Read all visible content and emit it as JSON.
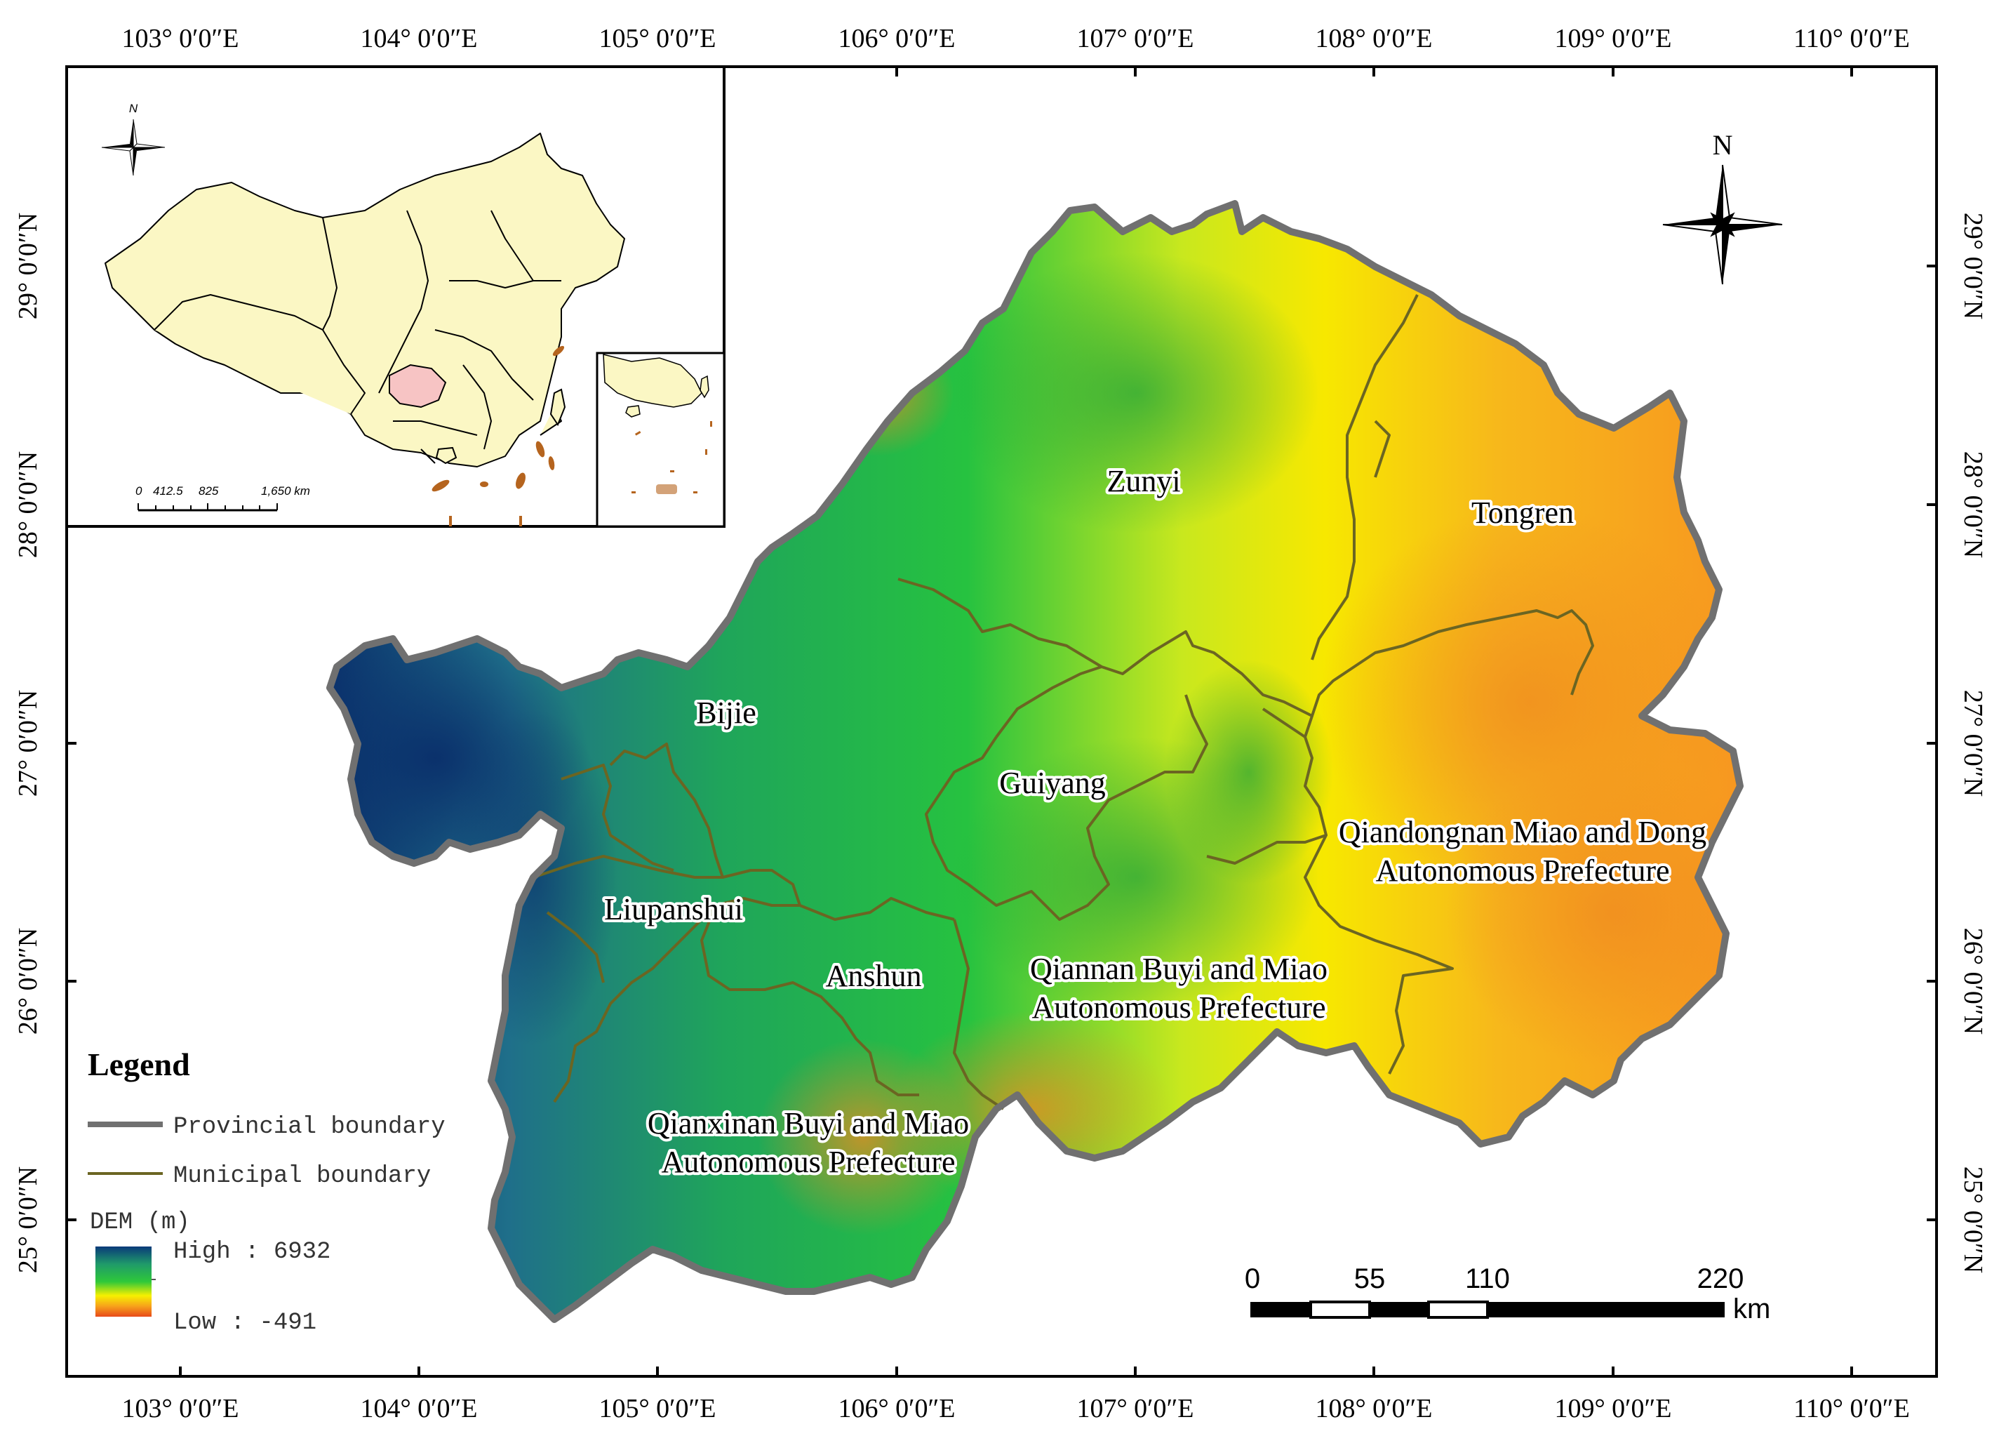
{
  "map": {
    "top_ticks": [
      "103° 0′0″E",
      "104° 0′0″E",
      "105° 0′0″E",
      "106° 0′0″E",
      "107° 0′0″E",
      "108° 0′0″E",
      "109° 0′0″E",
      "110° 0′0″E"
    ],
    "bottom_ticks": [
      "103° 0′0″E",
      "104° 0′0″E",
      "105° 0′0″E",
      "106° 0′0″E",
      "107° 0′0″E",
      "108° 0′0″E",
      "109° 0′0″E",
      "110° 0′0″E"
    ],
    "left_ticks": [
      "29° 0′0″N",
      "28° 0′0″N",
      "27° 0′0″N",
      "26° 0′0″N",
      "25° 0′0″N"
    ],
    "right_ticks": [
      "29° 0′0″N",
      "28° 0′0″N",
      "27° 0′0″N",
      "26° 0′0″N",
      "25° 0′0″N"
    ],
    "regions": [
      {
        "name": "Zunyi"
      },
      {
        "name": "Tongren"
      },
      {
        "name": "Bijie"
      },
      {
        "name": "Guiyang"
      },
      {
        "name": "Liupanshui"
      },
      {
        "name": "Anshun"
      },
      {
        "name": "Qiandongnan Miao and Dong",
        "name2": "Autonomous Prefecture"
      },
      {
        "name": "Qiannan Buyi and Miao",
        "name2": "Autonomous Prefecture"
      },
      {
        "name": "Qianxinan Buyi and Miao",
        "name2": "Autonomous Prefecture"
      }
    ],
    "north_label": "N",
    "scale": {
      "labels": [
        "0",
        "55",
        "110",
        "220"
      ],
      "unit": "km"
    },
    "colors": {
      "high": "#0a2f6b",
      "mid_high": "#1f7a8c",
      "green": "#1fb84a",
      "yellow": "#f7f000",
      "orange": "#f7a21b",
      "low": "#e8531a",
      "provincial": "#707070",
      "municipal": "#6b6522",
      "inset_fill": "#fbf7c4",
      "inset_highlight": "#f7c4c4"
    }
  },
  "inset": {
    "north_label": "N",
    "scale_labels": [
      "0",
      "412.5",
      "825",
      "1,650 km"
    ]
  },
  "legend": {
    "title": "Legend",
    "provincial": "Provincial boundary",
    "municipal": "Municipal boundary",
    "dem_title": "DEM (m)",
    "high": "High : 6932",
    "low": "Low : -491"
  }
}
